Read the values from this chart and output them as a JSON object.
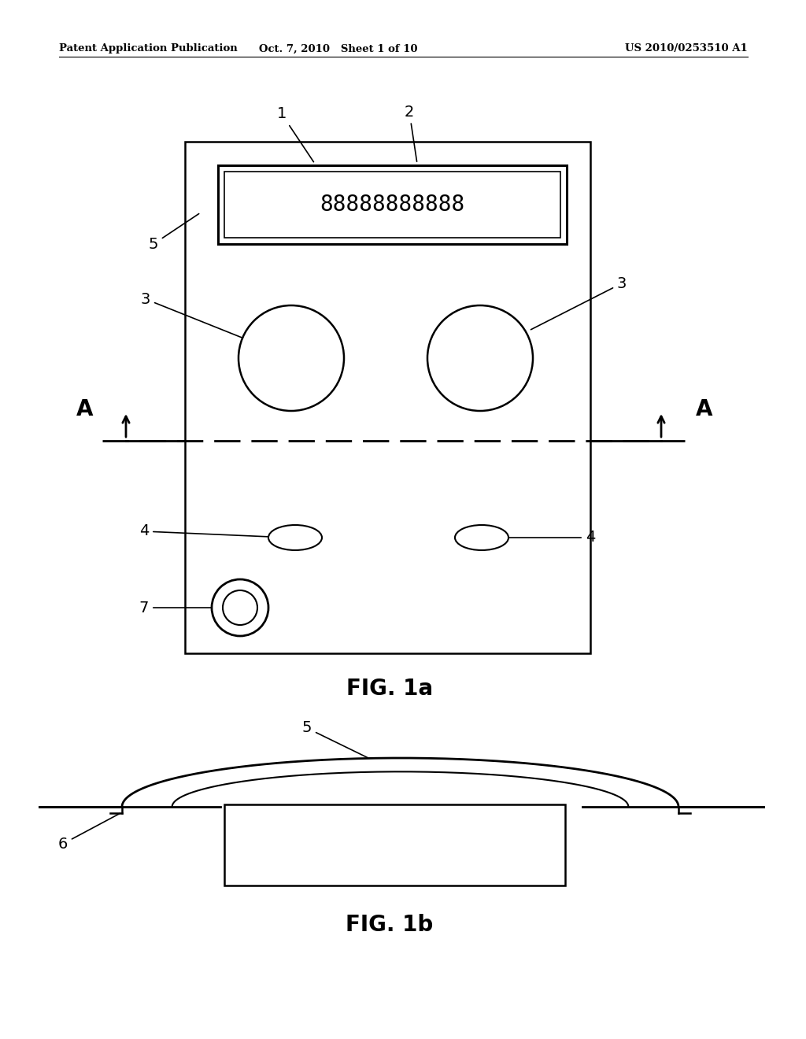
{
  "background_color": "#ffffff",
  "header_left": "Patent Application Publication",
  "header_mid": "Oct. 7, 2010   Sheet 1 of 10",
  "header_right": "US 2010/0253510 A1",
  "fig1a_label": "FIG. 1a",
  "fig1b_label": "FIG. 1b",
  "display_text": "88888888888",
  "line_color": "#000000",
  "text_color": "#000000"
}
